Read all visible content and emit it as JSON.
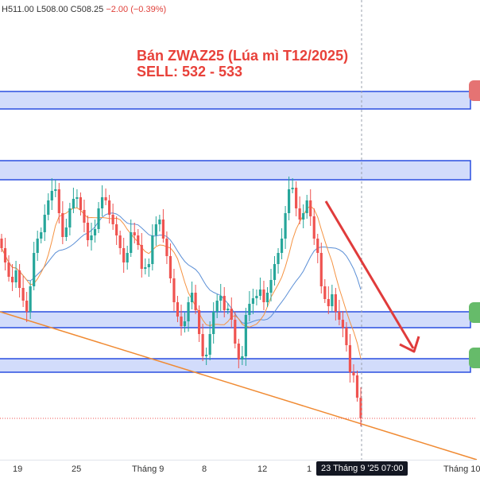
{
  "ohlc": {
    "high": "H511.00",
    "low": "L508.00",
    "close": "C508.25",
    "change": "−2.00 (−0.39%)"
  },
  "annotation": {
    "line1": "Bán ZWAZ25 (Lúa mì T12/2025)",
    "line2": "SELL: 532 - 533"
  },
  "x_axis": {
    "ticks": [
      "19",
      "25",
      "Tháng 9",
      "8",
      "12",
      "1",
      "Tháng 10"
    ],
    "crosshair_label": "23 Tháng 9 '25   07:00"
  },
  "colors": {
    "up_candle": "#26a69a",
    "down_candle": "#ef5350",
    "zone_fill": "#cdd8fb",
    "zone_border": "#2a4fe0",
    "arrow": "#e03b3b",
    "trendline": "#f08a32",
    "ma_fast": "#f59342",
    "ma_slow": "#5b8fd6",
    "marker_red": "#e57373",
    "marker_green": "#66bb6a"
  },
  "icons": {
    "edge_markers": [
      "sell-marker-icon",
      "tp-marker-icon",
      "tp-marker-icon"
    ]
  }
}
